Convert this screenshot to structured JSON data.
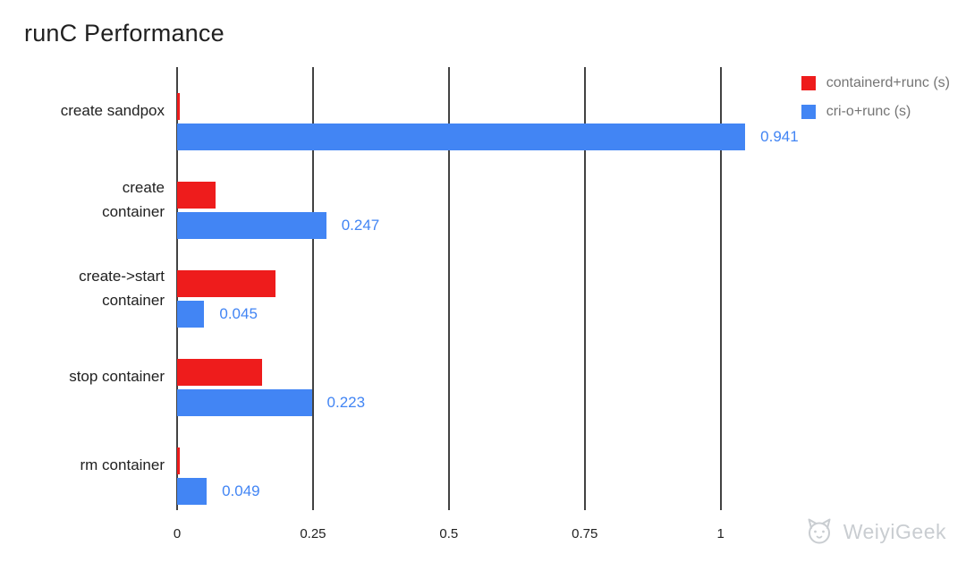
{
  "chart_data": {
    "type": "bar",
    "orientation": "horizontal",
    "title": "runC Performance",
    "categories": [
      "create sandpox",
      "create\ncontainer",
      "create->start\ncontainer",
      "stop container",
      "rm container"
    ],
    "series": [
      {
        "name": "containerd+runc (s)",
        "color": "#ee1c1c",
        "values": [
          0.005,
          0.064,
          0.163,
          0.14,
          0.005
        ]
      },
      {
        "name": "cri-o+runc (s)",
        "color": "#4285f4",
        "values": [
          0.941,
          0.247,
          0.045,
          0.223,
          0.049
        ]
      }
    ],
    "value_labels": {
      "series": "cri-o+runc (s)",
      "values": [
        "0.941",
        "0.247",
        "0.045",
        "0.223",
        "0.049"
      ],
      "color": "#4285f4"
    },
    "x_ticks": [
      "0",
      "0.25",
      "0.5",
      "0.75",
      "1"
    ],
    "x_tick_values": [
      0,
      0.25,
      0.5,
      0.75,
      1
    ],
    "xlim": [
      0,
      1.04
    ],
    "grid": true,
    "gridline_color": "#424242",
    "legend_position": "top-right",
    "background": "#ffffff"
  },
  "watermark": {
    "text": "WeiyiGeek",
    "icon": "cat-logo-icon"
  }
}
